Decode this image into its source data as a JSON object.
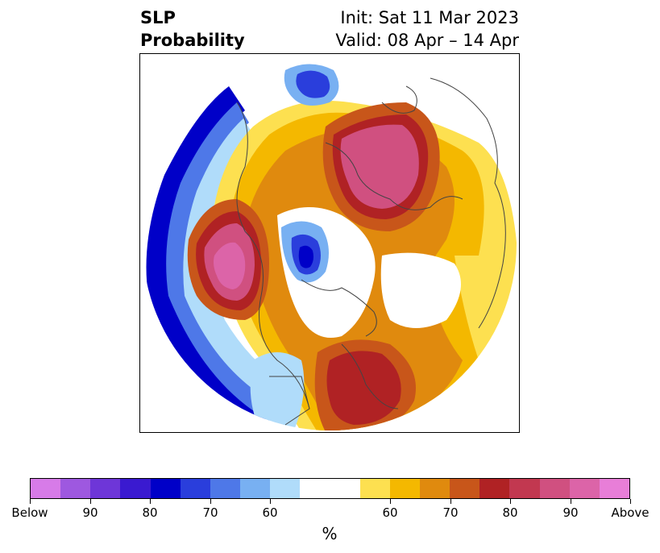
{
  "title": {
    "left_line1": "SLP",
    "left_line2": "Probability",
    "right_line1": "Init: Sat 11 Mar 2023",
    "right_line2": "Valid: 08 Apr – 14 Apr"
  },
  "colorbar": {
    "unit": "%",
    "segments": [
      {
        "category": "below",
        "color": "#d77be8"
      },
      {
        "category": "below",
        "color": "#9e58e0"
      },
      {
        "category": "below",
        "color": "#6e36d8"
      },
      {
        "category": "below",
        "color": "#3a1ad0"
      },
      {
        "category": "below",
        "color": "#0000c8"
      },
      {
        "category": "below",
        "color": "#2a3edc"
      },
      {
        "category": "below",
        "color": "#4e78e8"
      },
      {
        "category": "below",
        "color": "#78b0f2"
      },
      {
        "category": "below",
        "color": "#b0dcfa"
      },
      {
        "category": "neutral",
        "color": "#ffffff"
      },
      {
        "category": "above",
        "color": "#fde050"
      },
      {
        "category": "above",
        "color": "#f4b800"
      },
      {
        "category": "above",
        "color": "#e08a0e"
      },
      {
        "category": "above",
        "color": "#c8561a"
      },
      {
        "category": "above",
        "color": "#b02224"
      },
      {
        "category": "above",
        "color": "#c23850"
      },
      {
        "category": "above",
        "color": "#d05080"
      },
      {
        "category": "above",
        "color": "#dc64a8"
      },
      {
        "category": "above",
        "color": "#e87ed8"
      }
    ],
    "tick_labels": [
      "Below",
      "90",
      "80",
      "70",
      "60",
      "60",
      "70",
      "80",
      "90",
      "Above"
    ]
  },
  "map": {
    "projection": "north-polar-stereographic",
    "variable": "SLP tercile probability",
    "features": [
      {
        "name": "low-pressure-center-gulf-of-alaska",
        "category": "above",
        "level": 5
      },
      {
        "name": "high-probability-siberia",
        "category": "above",
        "level": 5
      },
      {
        "name": "high-probability-eastern-us",
        "category": "above",
        "level": 4
      },
      {
        "name": "below-normal-arctic-canada",
        "category": "below",
        "level": 4
      },
      {
        "name": "below-normal-norwegian-sea",
        "category": "below",
        "level": 4
      },
      {
        "name": "below-normal-north-pacific-edge",
        "category": "below",
        "level": 5
      }
    ]
  }
}
